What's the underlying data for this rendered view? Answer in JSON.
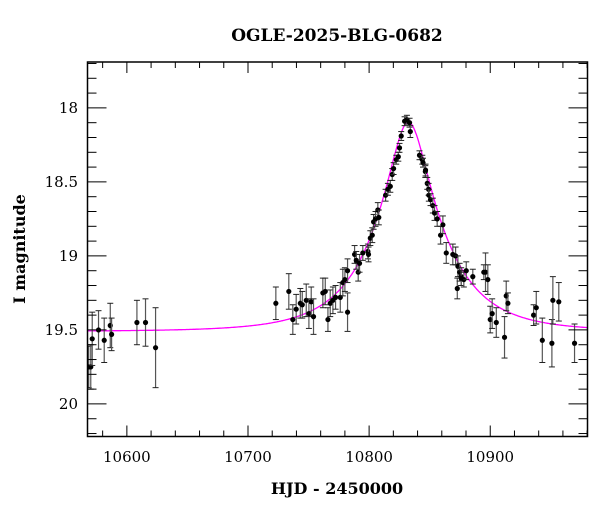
{
  "chart_data": {
    "type": "scatter",
    "title": "OGLE-2025-BLG-0682",
    "xlabel": "HJD - 2450000",
    "ylabel": "I magnitude",
    "xlim": [
      10567.5,
      10980.3
    ],
    "ylim": [
      20.22,
      17.69
    ],
    "y_inverted": true,
    "x_ticks": [
      10600,
      10700,
      10800,
      10900
    ],
    "y_ticks": [
      18,
      18.5,
      19,
      19.5,
      20
    ],
    "x_tick_labels": [
      "10600",
      "10700",
      "10800",
      "10900"
    ],
    "y_tick_labels": [
      "18",
      "18.5",
      "19",
      "19.5",
      "20"
    ],
    "x_minor_step": 20,
    "y_minor_step": 0.1,
    "grid": false,
    "colors": {
      "points": "#000000",
      "errorbars": "#555555",
      "model": "#ff00ff"
    },
    "model": {
      "type": "point-lens (Paczynski) fit",
      "t0": 10832.5,
      "u0": 0.28,
      "tE": 55,
      "baseline": 19.51
    },
    "points_columns": [
      "HJD-2450000",
      "I",
      "err"
    ],
    "points": [
      [
        10568.5,
        19.75,
        0.14
      ],
      [
        10570.2,
        19.75,
        0.15
      ],
      [
        10571.4,
        19.56,
        0.18
      ],
      [
        10576.6,
        19.5,
        0.13
      ],
      [
        10581.3,
        19.57,
        0.15
      ],
      [
        10586.3,
        19.47,
        0.15
      ],
      [
        10587.4,
        19.53,
        0.11
      ],
      [
        10608.3,
        19.45,
        0.15
      ],
      [
        10615.4,
        19.45,
        0.16
      ],
      [
        10623.7,
        19.62,
        0.27
      ],
      [
        10723.0,
        19.32,
        0.11
      ],
      [
        10733.7,
        19.24,
        0.12
      ],
      [
        10737.0,
        19.43,
        0.1
      ],
      [
        10739.8,
        19.36,
        0.1
      ],
      [
        10743.2,
        19.32,
        0.1
      ],
      [
        10744.8,
        19.33,
        0.09
      ],
      [
        10748.1,
        19.3,
        0.11
      ],
      [
        10750.3,
        19.39,
        0.1
      ],
      [
        10752.2,
        19.31,
        0.1
      ],
      [
        10754.1,
        19.41,
        0.12
      ],
      [
        10761.8,
        19.25,
        0.1
      ],
      [
        10763.8,
        19.24,
        0.09
      ],
      [
        10766.0,
        19.43,
        0.08
      ],
      [
        10767.9,
        19.32,
        0.09
      ],
      [
        10770.1,
        19.3,
        0.09
      ],
      [
        10772.3,
        19.28,
        0.08
      ],
      [
        10776.2,
        19.28,
        0.1
      ],
      [
        10778.3,
        19.18,
        0.09
      ],
      [
        10780.0,
        19.16,
        0.08
      ],
      [
        10782.2,
        19.38,
        0.13
      ],
      [
        10782.2,
        19.1,
        0.08
      ],
      [
        10788.0,
        18.99,
        0.06
      ],
      [
        10789.4,
        19.03,
        0.06
      ],
      [
        10791.0,
        19.11,
        0.06
      ],
      [
        10792.1,
        19.05,
        0.06
      ],
      [
        10794.8,
        18.98,
        0.05
      ],
      [
        10799.0,
        18.97,
        0.05
      ],
      [
        10799.5,
        18.99,
        0.05
      ],
      [
        10801.0,
        18.88,
        0.05
      ],
      [
        10802.6,
        18.86,
        0.05
      ],
      [
        10803.7,
        18.77,
        0.05
      ],
      [
        10805.3,
        18.75,
        0.05
      ],
      [
        10807.2,
        18.69,
        0.05
      ],
      [
        10808.0,
        18.74,
        0.05
      ],
      [
        10813.6,
        18.59,
        0.04
      ],
      [
        10815.5,
        18.55,
        0.04
      ],
      [
        10817.5,
        18.53,
        0.04
      ],
      [
        10819.1,
        18.45,
        0.04
      ],
      [
        10820.2,
        18.41,
        0.04
      ],
      [
        10822.4,
        18.35,
        0.03
      ],
      [
        10824.1,
        18.33,
        0.03
      ],
      [
        10825.1,
        18.27,
        0.03
      ],
      [
        10826.5,
        18.19,
        0.03
      ],
      [
        10829.3,
        18.09,
        0.03
      ],
      [
        10831.2,
        18.08,
        0.03
      ],
      [
        10833.4,
        18.1,
        0.03
      ],
      [
        10834.0,
        18.16,
        0.04
      ],
      [
        10841.6,
        18.32,
        0.03
      ],
      [
        10843.9,
        18.35,
        0.03
      ],
      [
        10844.5,
        18.37,
        0.03
      ],
      [
        10846.4,
        18.43,
        0.04
      ],
      [
        10846.6,
        18.42,
        0.04
      ],
      [
        10848.0,
        18.51,
        0.04
      ],
      [
        10849.1,
        18.55,
        0.04
      ],
      [
        10849.3,
        18.59,
        0.04
      ],
      [
        10850.7,
        18.62,
        0.04
      ],
      [
        10852.6,
        18.66,
        0.05
      ],
      [
        10854.0,
        18.71,
        0.05
      ],
      [
        10856.2,
        18.75,
        0.05
      ],
      [
        10859.0,
        18.86,
        0.06
      ],
      [
        10860.9,
        18.79,
        0.06
      ],
      [
        10863.7,
        18.98,
        0.07
      ],
      [
        10869.1,
        18.99,
        0.07
      ],
      [
        10871.4,
        19.0,
        0.06
      ],
      [
        10872.8,
        19.22,
        0.07
      ],
      [
        10873.3,
        19.07,
        0.07
      ],
      [
        10874.7,
        19.11,
        0.06
      ],
      [
        10876.0,
        19.14,
        0.06
      ],
      [
        10876.0,
        19.15,
        0.05
      ],
      [
        10878.2,
        19.16,
        0.05
      ],
      [
        10880.2,
        19.1,
        0.06
      ],
      [
        10885.6,
        19.14,
        0.05
      ],
      [
        10894.7,
        19.11,
        0.05
      ],
      [
        10896.1,
        19.11,
        0.13
      ],
      [
        10898.0,
        19.16,
        0.1
      ],
      [
        10900.0,
        19.43,
        0.09
      ],
      [
        10901.6,
        19.39,
        0.1
      ],
      [
        10905.0,
        19.45,
        0.1
      ],
      [
        10911.8,
        19.55,
        0.14
      ],
      [
        10913.2,
        19.27,
        0.1
      ],
      [
        10914.6,
        19.32,
        0.07
      ],
      [
        10935.8,
        19.4,
        0.07
      ],
      [
        10938.0,
        19.35,
        0.11
      ],
      [
        10943.0,
        19.57,
        0.15
      ],
      [
        10950.9,
        19.59,
        0.16
      ],
      [
        10951.7,
        19.3,
        0.16
      ],
      [
        10956.6,
        19.31,
        0.13
      ],
      [
        10969.6,
        19.59,
        0.13
      ]
    ]
  }
}
